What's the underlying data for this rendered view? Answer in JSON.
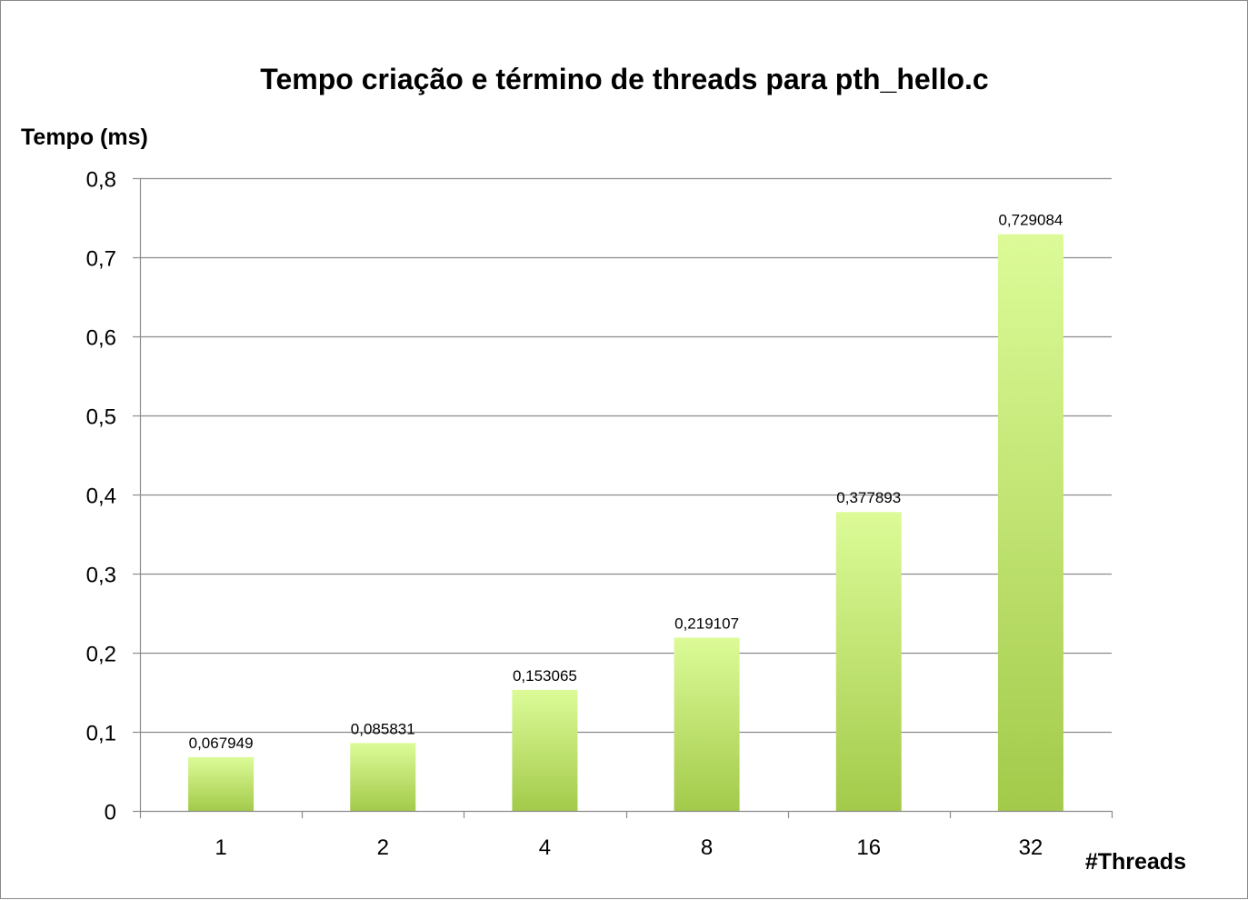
{
  "chart_data": {
    "type": "bar",
    "title": "Tempo criação e término de threads para pth_hello.c",
    "xlabel": "#Threads",
    "ylabel": "Tempo (ms)",
    "categories": [
      "1",
      "2",
      "4",
      "8",
      "16",
      "32"
    ],
    "values": [
      0.067949,
      0.085831,
      0.153065,
      0.219107,
      0.377893,
      0.729084
    ],
    "data_labels": [
      "0,067949",
      "0,085831",
      "0,153065",
      "0,219107",
      "0,377893",
      "0,729084"
    ],
    "ylim": [
      0,
      0.8
    ],
    "yticks": [
      0,
      0.1,
      0.2,
      0.3,
      0.4,
      0.5,
      0.6,
      0.7,
      0.8
    ],
    "ytick_labels": [
      "0",
      "0,1",
      "0,2",
      "0,3",
      "0,4",
      "0,5",
      "0,6",
      "0,7",
      "0,8"
    ],
    "grid": true,
    "legend": "none",
    "colors": {
      "bar_top": "#dcfb98",
      "bar_bottom": "#a3ca4a",
      "grid": "#8c8c8c",
      "axis": "#8c8c8c"
    }
  }
}
